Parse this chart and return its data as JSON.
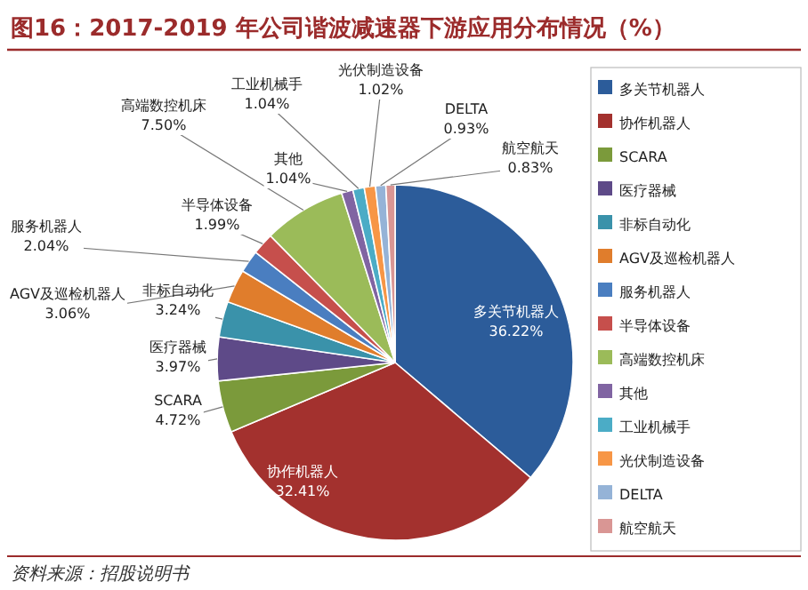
{
  "chart_data": {
    "type": "pie",
    "title": "图16：2017-2019 年公司谐波减速器下游应用分布情况（%）",
    "categories": [
      "多关节机器人",
      "协作机器人",
      "SCARA",
      "医疗器械",
      "非标自动化",
      "AGV及巡检机器人",
      "服务机器人",
      "半导体设备",
      "高端数控机床",
      "其他",
      "工业机械手",
      "光伏制造设备",
      "DELTA",
      "航空航天"
    ],
    "values": [
      36.22,
      32.41,
      4.72,
      3.97,
      3.24,
      3.06,
      2.04,
      1.99,
      7.5,
      1.04,
      1.04,
      1.02,
      0.93,
      0.83
    ],
    "value_labels": [
      "36.22%",
      "32.41%",
      "4.72%",
      "3.97%",
      "3.24%",
      "3.06%",
      "2.04%",
      "1.99%",
      "7.50%",
      "1.04%",
      "1.04%",
      "1.02%",
      "0.93%",
      "0.83%"
    ],
    "colors": [
      "#2c5c9a",
      "#a3312e",
      "#7b9a3b",
      "#5e4a88",
      "#3a92aa",
      "#e07d2c",
      "#4a7ec0",
      "#c64f4c",
      "#9bbb59",
      "#8064a2",
      "#4bacc6",
      "#f79646",
      "#95b3d7",
      "#d99694"
    ],
    "legend": "right",
    "annotations": [
      "资料来源：招股说明书"
    ]
  }
}
